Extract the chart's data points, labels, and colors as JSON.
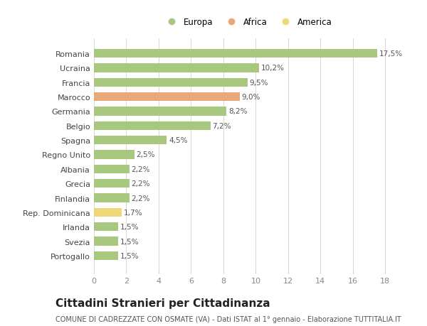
{
  "categories": [
    "Romania",
    "Ucraina",
    "Francia",
    "Marocco",
    "Germania",
    "Belgio",
    "Spagna",
    "Regno Unito",
    "Albania",
    "Grecia",
    "Finlandia",
    "Rep. Dominicana",
    "Irlanda",
    "Svezia",
    "Portogallo"
  ],
  "values": [
    17.5,
    10.2,
    9.5,
    9.0,
    8.2,
    7.2,
    4.5,
    2.5,
    2.2,
    2.2,
    2.2,
    1.7,
    1.5,
    1.5,
    1.5
  ],
  "labels": [
    "17,5%",
    "10,2%",
    "9,5%",
    "9,0%",
    "8,2%",
    "7,2%",
    "4,5%",
    "2,5%",
    "2,2%",
    "2,2%",
    "2,2%",
    "1,7%",
    "1,5%",
    "1,5%",
    "1,5%"
  ],
  "colors": [
    "#a8c880",
    "#a8c880",
    "#a8c880",
    "#e8a878",
    "#a8c880",
    "#a8c880",
    "#a8c880",
    "#a8c880",
    "#a8c880",
    "#a8c880",
    "#a8c880",
    "#f0d878",
    "#a8c880",
    "#a8c880",
    "#a8c880"
  ],
  "legend": [
    {
      "label": "Europa",
      "color": "#a8c880"
    },
    {
      "label": "Africa",
      "color": "#e8a878"
    },
    {
      "label": "America",
      "color": "#f0d878"
    }
  ],
  "xlim": [
    0,
    19
  ],
  "xticks": [
    0,
    2,
    4,
    6,
    8,
    10,
    12,
    14,
    16,
    18
  ],
  "title": "Cittadini Stranieri per Cittadinanza",
  "subtitle": "COMUNE DI CADREZZATE CON OSMATE (VA) - Dati ISTAT al 1° gennaio - Elaborazione TUTTITALIA.IT",
  "background_color": "#ffffff",
  "grid_color": "#d8d8d8",
  "bar_label_fontsize": 7.5,
  "ytick_fontsize": 8,
  "xtick_fontsize": 8,
  "title_fontsize": 11,
  "subtitle_fontsize": 7
}
